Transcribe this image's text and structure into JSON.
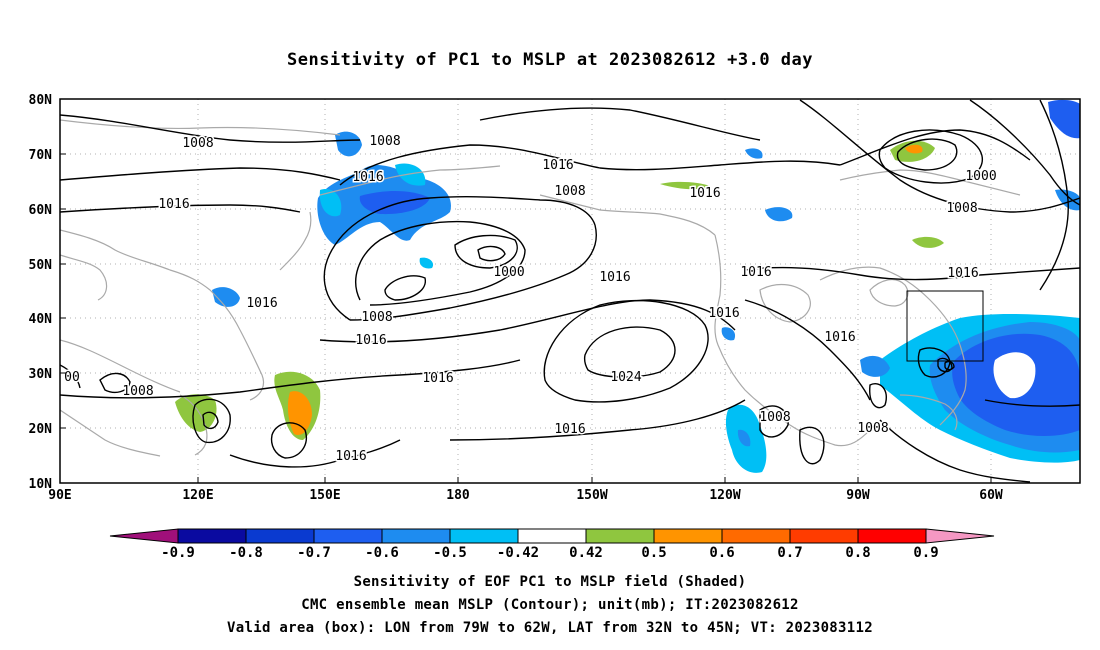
{
  "title": "Sensitivity of PC1 to MSLP at 2023082612 +3.0 day",
  "map": {
    "lat_ticks": [
      "80N",
      "70N",
      "60N",
      "50N",
      "40N",
      "30N",
      "20N",
      "10N"
    ],
    "lon_ticks": [
      "90E",
      "120E",
      "150E",
      "180",
      "150W",
      "120W",
      "90W",
      "60W"
    ],
    "contour_labels": [
      "1008",
      "1008",
      "1016",
      "1016",
      "1008",
      "1016",
      "1000",
      "1008",
      "1016",
      "1016",
      "1000",
      "1008",
      "1016",
      "1016",
      "1016",
      "1016",
      "1016",
      "1016",
      "1016",
      "1016",
      "1024",
      "1016",
      "1008",
      "1008",
      "1008",
      "00",
      "1008"
    ],
    "colors": {
      "land_outline": "#a9a9a9",
      "contour": "#000000",
      "gridline": "#b0b0b0"
    }
  },
  "colorbar": {
    "labels": [
      "-0.9",
      "-0.8",
      "-0.7",
      "-0.6",
      "-0.5",
      "-0.42",
      "0.42",
      "0.5",
      "0.6",
      "0.7",
      "0.8",
      "0.9"
    ],
    "colors": [
      "#a0107a",
      "#0a0aa0",
      "#0a3ad0",
      "#1e5ef0",
      "#1e8cf0",
      "#00bff5",
      "#ffffff",
      "#8fc63f",
      "#ff9400",
      "#ff6a00",
      "#ff3c00",
      "#ff0000",
      "#f598c3"
    ]
  },
  "captions": {
    "line1": "Sensitivity of EOF PC1 to MSLP field (Shaded)",
    "line2": "CMC ensemble mean MSLP (Contour); unit(mb); IT:2023082612",
    "line3": "Valid area (box): LON from 79W to 62W, LAT from 32N to 45N; VT: 2023083112"
  }
}
